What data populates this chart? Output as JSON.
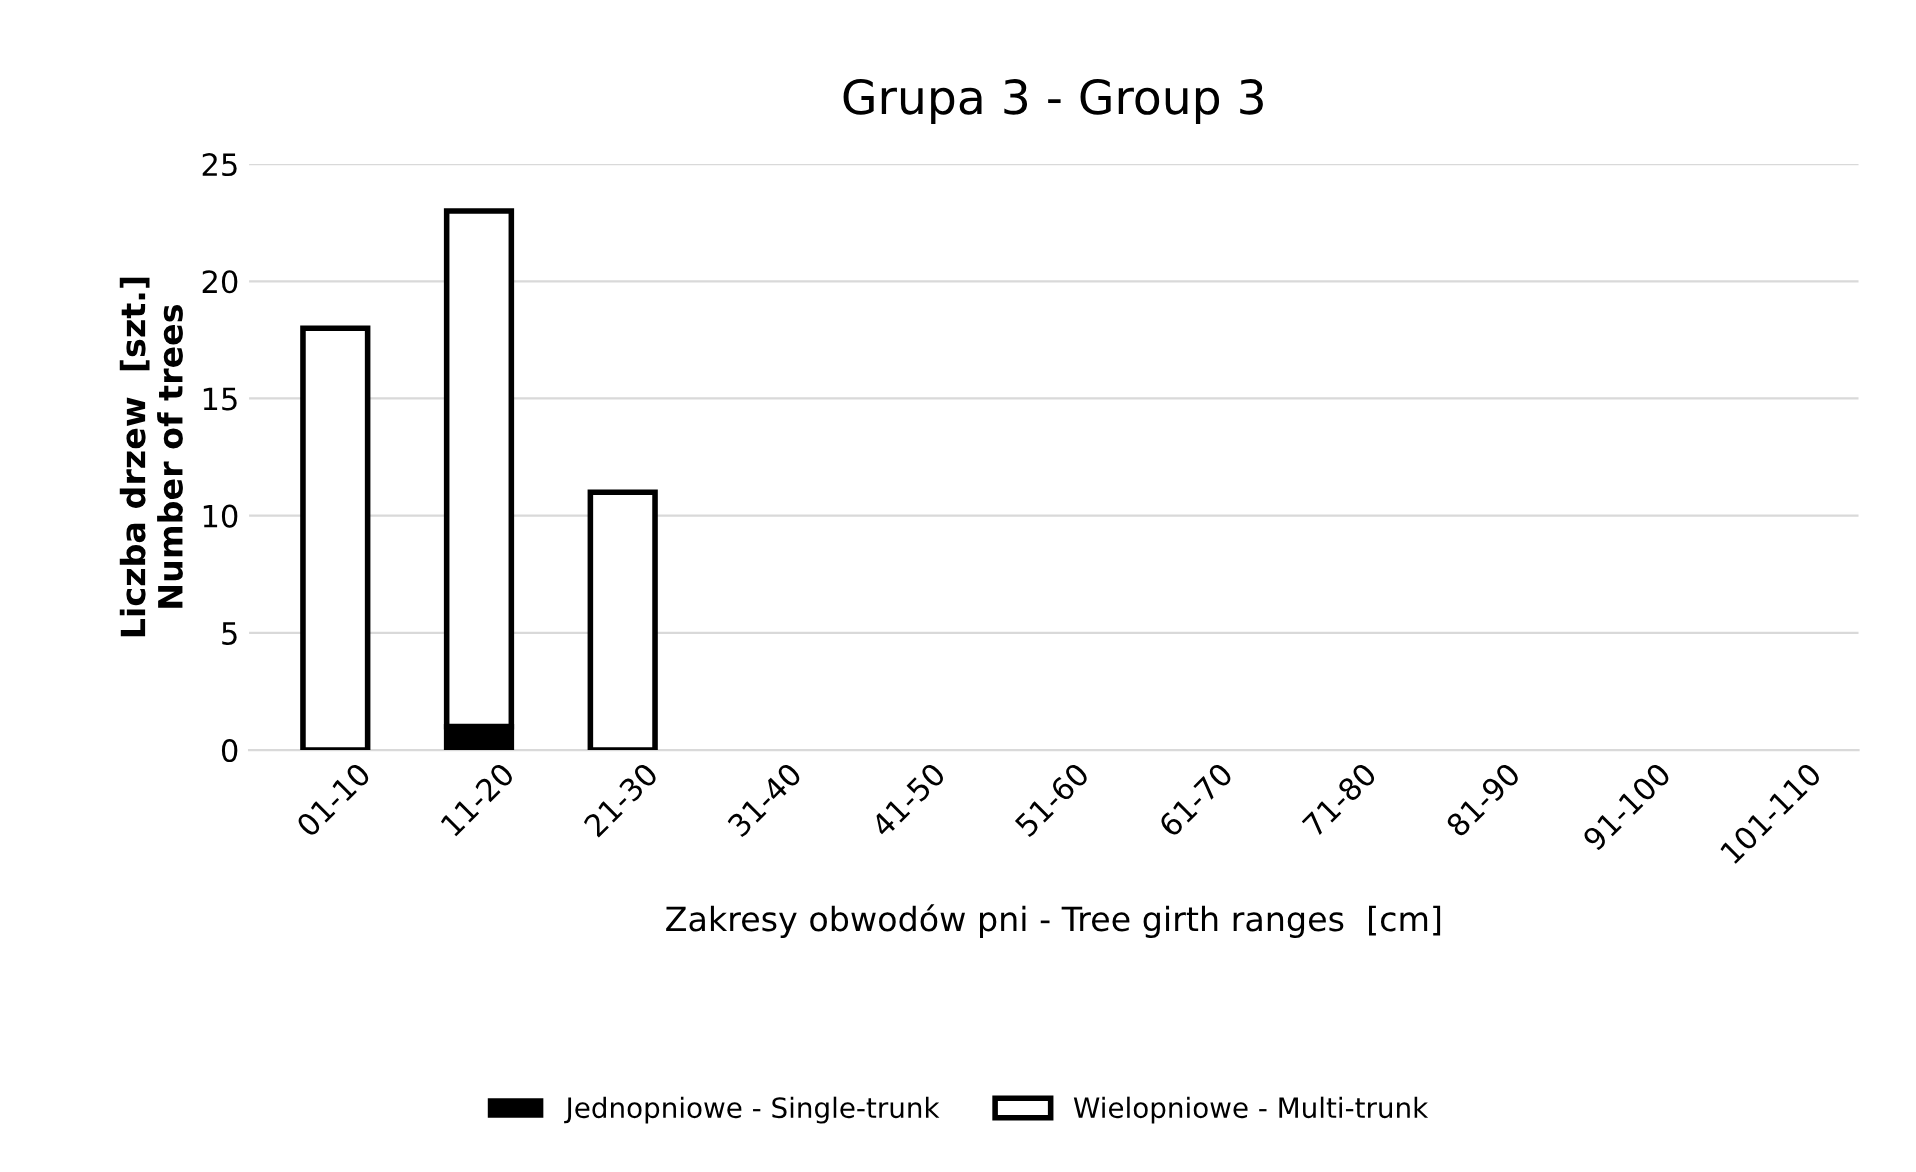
{
  "chart_data": {
    "type": "bar",
    "title": "Grupa 3 - Group 3",
    "xlabel": "Zakresy obwodów pni - Tree girth ranges  [cm]",
    "ylabel": "Liczba drzew  [szt.]\nNumber of trees",
    "categories": [
      "01-10",
      "11-20",
      "21-30",
      "31-40",
      "41-50",
      "51-60",
      "61-70",
      "71-80",
      "81-90",
      "91-100",
      "101-110"
    ],
    "series": [
      {
        "name": "Jednopniowe - Single-trunk",
        "color": "#000000",
        "values": [
          0,
          1,
          0,
          0,
          0,
          0,
          0,
          0,
          0,
          0,
          0
        ]
      },
      {
        "name": "Wielopniowe - Multi-trunk",
        "color": "#ffffff",
        "values": [
          18,
          22,
          11,
          0,
          0,
          0,
          0,
          0,
          0,
          0,
          0
        ]
      }
    ],
    "stacked": true,
    "ylim": [
      0,
      25
    ],
    "yticks": [
      0,
      5,
      10,
      15,
      20,
      25
    ],
    "grid": "y",
    "legend": "bottom"
  }
}
